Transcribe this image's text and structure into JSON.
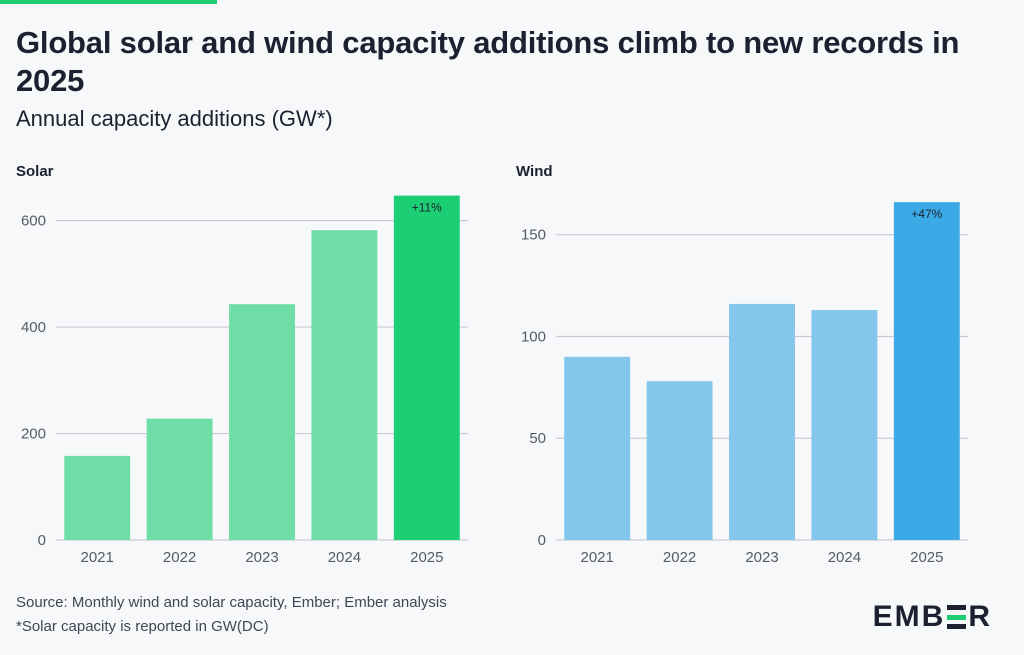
{
  "header": {
    "title": "Global solar and wind capacity additions climb to new records in 2025",
    "subtitle": "Annual capacity additions (GW*)"
  },
  "footer": {
    "source": "Source: Monthly wind and solar capacity, Ember; Ember analysis",
    "footnote": "*Solar capacity is reported in GW(DC)",
    "logo_text": "EMBER"
  },
  "colors": {
    "accent": "#1fce72",
    "solar_light": "#6fdea6",
    "solar_highlight": "#1ccf74",
    "wind_light": "#84c6ec",
    "wind_highlight": "#3ba9e6"
  },
  "chart_data": [
    {
      "type": "bar",
      "title": "Solar",
      "categories": [
        "2021",
        "2022",
        "2023",
        "2024",
        "2025"
      ],
      "values": [
        158,
        228,
        443,
        582,
        647
      ],
      "ylim": [
        0,
        650
      ],
      "yticks": [
        0,
        200,
        400,
        600
      ],
      "grid": true,
      "highlight_index": 4,
      "annotation": "+11%",
      "xlabel": "",
      "ylabel": ""
    },
    {
      "type": "bar",
      "title": "Wind",
      "categories": [
        "2021",
        "2022",
        "2023",
        "2024",
        "2025"
      ],
      "values": [
        90,
        78,
        116,
        113,
        166
      ],
      "ylim": [
        0,
        170
      ],
      "yticks": [
        0,
        50,
        100,
        150
      ],
      "grid": true,
      "highlight_index": 4,
      "annotation": "+47%",
      "xlabel": "",
      "ylabel": ""
    }
  ]
}
